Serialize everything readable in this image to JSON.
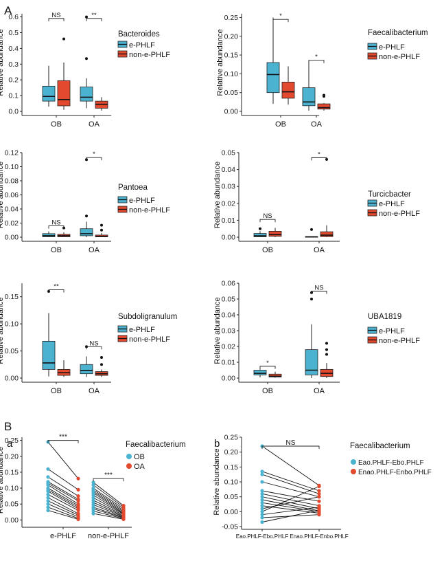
{
  "figure": {
    "panel_A_label": "A",
    "panel_B_label": "B",
    "sub_a_label": "a",
    "sub_b_label": "b"
  },
  "colors": {
    "group1": "#4bb3d0",
    "group2": "#e2492f",
    "axis": "#222222",
    "median": "#111111"
  },
  "chart_data": [
    {
      "type": "boxplot",
      "id": "A1",
      "title": "Bacteroides",
      "ylabel": "Relative abundance",
      "categories": [
        "OB",
        "OA"
      ],
      "ylim": [
        0,
        0.62
      ],
      "yticks": [
        "0.0",
        "0.1",
        "0.2",
        "0.3",
        "0.4",
        "0.5",
        "0.6"
      ],
      "legend": [
        "e-PHLF",
        "non-e-PHLF"
      ],
      "boxes": [
        {
          "cat": 0,
          "grp": 0,
          "lw": 0.03,
          "q1": 0.065,
          "med": 0.095,
          "q3": 0.16,
          "uw": 0.29,
          "out": []
        },
        {
          "cat": 0,
          "grp": 1,
          "lw": 0.01,
          "q1": 0.035,
          "med": 0.075,
          "q3": 0.195,
          "uw": 0.31,
          "out": [
            0.46
          ]
        },
        {
          "cat": 1,
          "grp": 0,
          "lw": 0.02,
          "q1": 0.065,
          "med": 0.09,
          "q3": 0.155,
          "uw": 0.21,
          "out": [
            0.335,
            0.6
          ]
        },
        {
          "cat": 1,
          "grp": 1,
          "lw": 0.005,
          "q1": 0.02,
          "med": 0.045,
          "q3": 0.065,
          "uw": 0.09,
          "out": []
        }
      ],
      "sig": [
        {
          "cat": 0,
          "label": "NS",
          "y": 0.59
        },
        {
          "cat": 1,
          "label": "**",
          "y": 0.59
        }
      ]
    },
    {
      "type": "boxplot",
      "id": "A2",
      "title": "Faecalibacterium",
      "ylabel": "Relative abundance",
      "categories": [
        "OB",
        "OA"
      ],
      "ylim": [
        0,
        0.26
      ],
      "yticks": [
        "0.00",
        "0.05",
        "0.10",
        "0.15",
        "0.20",
        "0.25"
      ],
      "legend": [
        "e-PHLF",
        "non-e-PHLF"
      ],
      "boxes": [
        {
          "cat": 0,
          "grp": 0,
          "lw": 0.02,
          "q1": 0.05,
          "med": 0.098,
          "q3": 0.13,
          "uw": 0.25,
          "out": []
        },
        {
          "cat": 0,
          "grp": 1,
          "lw": 0.018,
          "q1": 0.035,
          "med": 0.052,
          "q3": 0.078,
          "uw": 0.12,
          "out": []
        },
        {
          "cat": 1,
          "grp": 0,
          "lw": 0.002,
          "q1": 0.015,
          "med": 0.025,
          "q3": 0.063,
          "uw": 0.135,
          "out": []
        },
        {
          "cat": 1,
          "grp": 1,
          "lw": 0.002,
          "q1": 0.006,
          "med": 0.01,
          "q3": 0.02,
          "uw": 0.022,
          "out": [
            0.04,
            0.043
          ]
        }
      ],
      "sig": [
        {
          "cat": 0,
          "label": "*",
          "y": 0.245
        },
        {
          "cat": 1,
          "label": "*",
          "y": 0.136
        }
      ]
    },
    {
      "type": "boxplot",
      "id": "A3",
      "title": "Pantoea",
      "ylabel": "Relative abundance",
      "categories": [
        "OB",
        "OA"
      ],
      "ylim": [
        0,
        0.12
      ],
      "yticks": [
        "0.00",
        "0.02",
        "0.04",
        "0.06",
        "0.08",
        "0.10",
        "0.12"
      ],
      "legend": [
        "e-PHLF",
        "non-e-PHLF"
      ],
      "boxes": [
        {
          "cat": 0,
          "grp": 0,
          "lw": 0,
          "q1": 0.0005,
          "med": 0.002,
          "q3": 0.005,
          "uw": 0.008,
          "out": []
        },
        {
          "cat": 0,
          "grp": 1,
          "lw": 0,
          "q1": 0.0005,
          "med": 0.002,
          "q3": 0.004,
          "uw": 0.007,
          "out": [
            0.013
          ]
        },
        {
          "cat": 1,
          "grp": 0,
          "lw": 0,
          "q1": 0.002,
          "med": 0.005,
          "q3": 0.012,
          "uw": 0.022,
          "out": [
            0.03,
            0.11
          ]
        },
        {
          "cat": 1,
          "grp": 1,
          "lw": 0,
          "q1": 0.0005,
          "med": 0.001,
          "q3": 0.003,
          "uw": 0.006,
          "out": [
            0.01,
            0.017
          ]
        }
      ],
      "sig": [
        {
          "cat": 0,
          "label": "NS",
          "y": 0.016
        },
        {
          "cat": 1,
          "label": "*",
          "y": 0.113
        }
      ]
    },
    {
      "type": "boxplot",
      "id": "A4",
      "title": "Turcicbacter",
      "ylabel": "Relative abundance",
      "categories": [
        "OB",
        "OA"
      ],
      "ylim": [
        0,
        0.05
      ],
      "yticks": [
        "0.00",
        "0.01",
        "0.02",
        "0.03",
        "0.04",
        "0.05"
      ],
      "legend": [
        "e-PHLF",
        "non-e-PHLF"
      ],
      "boxes": [
        {
          "cat": 0,
          "grp": 0,
          "lw": 0,
          "q1": 0.0002,
          "med": 0.0008,
          "q3": 0.0022,
          "uw": 0.0035,
          "out": [
            0.005
          ]
        },
        {
          "cat": 0,
          "grp": 1,
          "lw": 0,
          "q1": 0.0005,
          "med": 0.0015,
          "q3": 0.0035,
          "uw": 0.0055,
          "out": []
        },
        {
          "cat": 1,
          "grp": 0,
          "lw": 0,
          "q1": 0,
          "med": 0.0001,
          "q3": 0.0004,
          "uw": 0.0005,
          "out": [
            0.0045
          ]
        },
        {
          "cat": 1,
          "grp": 1,
          "lw": 0,
          "q1": 0.0003,
          "med": 0.0012,
          "q3": 0.0032,
          "uw": 0.007,
          "out": [
            0.046
          ]
        }
      ],
      "sig": [
        {
          "cat": 0,
          "label": "NS",
          "y": 0.0105
        },
        {
          "cat": 1,
          "label": "*",
          "y": 0.047
        }
      ]
    },
    {
      "type": "boxplot",
      "id": "A5",
      "title": "Subdoligranulum",
      "ylabel": "Relative abundance",
      "categories": [
        "OB",
        "OA"
      ],
      "ylim": [
        0,
        0.175
      ],
      "yticks": [
        "0.00",
        "0.05",
        "0.10",
        "0.15"
      ],
      "legend": [
        "e-PHLF",
        "non-e-PHLF"
      ],
      "boxes": [
        {
          "cat": 0,
          "grp": 0,
          "lw": 0.003,
          "q1": 0.016,
          "med": 0.028,
          "q3": 0.068,
          "uw": 0.12,
          "out": [
            0.16
          ]
        },
        {
          "cat": 0,
          "grp": 1,
          "lw": 0.002,
          "q1": 0.005,
          "med": 0.01,
          "q3": 0.016,
          "uw": 0.033,
          "out": []
        },
        {
          "cat": 1,
          "grp": 0,
          "lw": 0.002,
          "q1": 0.008,
          "med": 0.014,
          "q3": 0.025,
          "uw": 0.04,
          "out": [
            0.058
          ]
        },
        {
          "cat": 1,
          "grp": 1,
          "lw": 0.002,
          "q1": 0.005,
          "med": 0.008,
          "q3": 0.012,
          "uw": 0.016,
          "out": [
            0.025,
            0.038
          ]
        }
      ],
      "sig": [
        {
          "cat": 0,
          "label": "**",
          "y": 0.163
        },
        {
          "cat": 1,
          "label": "NS",
          "y": 0.058
        }
      ]
    },
    {
      "type": "boxplot",
      "id": "A6",
      "title": "UBA1819",
      "ylabel": "Relative abundance",
      "categories": [
        "OB",
        "OA"
      ],
      "ylim": [
        0,
        0.06
      ],
      "yticks": [
        "0.00",
        "0.01",
        "0.02",
        "0.03",
        "0.04",
        "0.05",
        "0.06"
      ],
      "legend": [
        "e-PHLF",
        "non-e-PHLF"
      ],
      "boxes": [
        {
          "cat": 0,
          "grp": 0,
          "lw": 0.0005,
          "q1": 0.002,
          "med": 0.003,
          "q3": 0.005,
          "uw": 0.006,
          "out": []
        },
        {
          "cat": 0,
          "grp": 1,
          "lw": 0.0002,
          "q1": 0.0007,
          "med": 0.0012,
          "q3": 0.0025,
          "uw": 0.004,
          "out": []
        },
        {
          "cat": 1,
          "grp": 0,
          "lw": 0,
          "q1": 0.002,
          "med": 0.005,
          "q3": 0.018,
          "uw": 0.034,
          "out": [
            0.05,
            0.054
          ]
        },
        {
          "cat": 1,
          "grp": 1,
          "lw": 0,
          "q1": 0.001,
          "med": 0.003,
          "q3": 0.0055,
          "uw": 0.0095,
          "out": [
            0.015,
            0.018,
            0.022
          ]
        }
      ],
      "sig": [
        {
          "cat": 0,
          "label": "*",
          "y": 0.0075
        },
        {
          "cat": 1,
          "label": "NS",
          "y": 0.055
        }
      ]
    },
    {
      "type": "paired",
      "id": "Ba",
      "title": "Faecalibacterium",
      "ylabel": "Relative abundance",
      "categories": [
        "e-PHLF",
        "non-e-PHLF"
      ],
      "ylim": [
        -0.01,
        0.26
      ],
      "yticks": [
        "0.00",
        "0.05",
        "0.10",
        "0.15",
        "0.20",
        "0.25"
      ],
      "legend": [
        "OB",
        "OA"
      ],
      "pairs": [
        {
          "cat": 0,
          "a": [
            0.245,
            0.16,
            0.135,
            0.12,
            0.115,
            0.11,
            0.1,
            0.095,
            0.09,
            0.08,
            0.07,
            0.06,
            0.05,
            0.04,
            0.03
          ],
          "b": [
            0.13,
            0.095,
            0.075,
            0.065,
            0.06,
            0.05,
            0.045,
            0.04,
            0.035,
            0.03,
            0.02,
            0.015,
            0.01,
            0.005,
            0.002
          ]
        },
        {
          "cat": 1,
          "a": [
            0.118,
            0.11,
            0.1,
            0.095,
            0.09,
            0.085,
            0.078,
            0.07,
            0.062,
            0.055,
            0.048,
            0.04,
            0.035,
            0.028,
            0.02
          ],
          "b": [
            0.045,
            0.04,
            0.035,
            0.03,
            0.026,
            0.022,
            0.02,
            0.018,
            0.015,
            0.012,
            0.01,
            0.008,
            0.006,
            0.004,
            0.002
          ]
        }
      ],
      "sig": [
        {
          "cat": 0,
          "label": "***",
          "y": 0.25
        },
        {
          "cat": 1,
          "label": "***",
          "y": 0.13
        }
      ]
    },
    {
      "type": "paired",
      "id": "Bb",
      "title": "Faecalibacterium",
      "ylabel": "Relative abundance",
      "categories": [
        "Eao.PHLF-Ebo.PHLF",
        "Enao.PHLF-Enbo.PHLF"
      ],
      "ylim": [
        -0.05,
        0.25
      ],
      "yticks": [
        "-0.05",
        "0.00",
        "0.05",
        "0.10",
        "0.15",
        "0.20",
        "0.25"
      ],
      "legend": [
        "Eao.PHLF-Ebo.PHLF",
        "Enao.PHLF-Enbo.PHLF"
      ],
      "pairs": [
        {
          "cat": 0,
          "a": [
            0.22,
            0.135,
            0.125,
            0.1,
            0.07,
            0.06,
            0.05,
            0.04,
            0.03,
            0.02,
            0.01,
            0.0,
            -0.01,
            -0.02,
            -0.035
          ],
          "b": [
            0.088,
            0.07,
            0.06,
            0.05,
            0.035,
            0.02,
            0.01,
            0.003,
            0.0,
            -0.005,
            0.05,
            0.085,
            0.015,
            -0.01,
            0.005
          ]
        }
      ],
      "sig": [
        {
          "cat": 0,
          "label": "NS",
          "y": 0.22,
          "span": true
        }
      ]
    }
  ]
}
